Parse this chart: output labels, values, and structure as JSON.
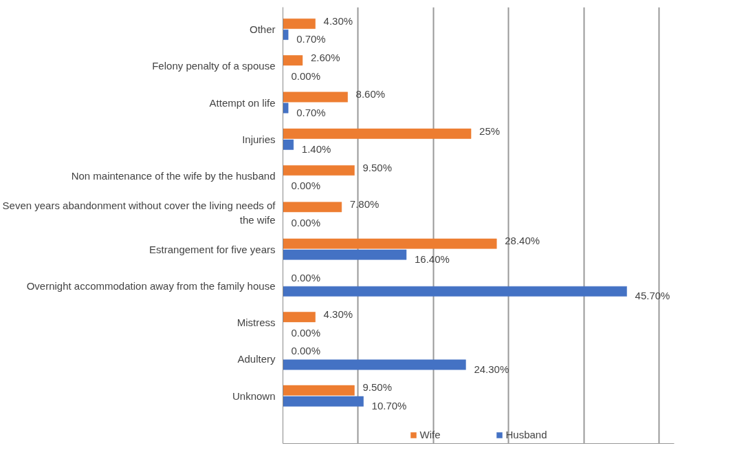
{
  "chart_data": {
    "type": "bar",
    "orientation": "horizontal",
    "categories": [
      "Other",
      "Felony penalty of a spouse",
      "Attempt on life",
      "Injuries",
      "Non maintenance of the wife by the husband",
      "Seven years abandonment without cover the living needs of the wife",
      "Estrangement for five years",
      "Overnight accommodation away from the family house",
      "Mistress",
      "Adultery",
      "Unknown"
    ],
    "series": [
      {
        "name": "Wife",
        "color": "#ed7d31",
        "values": [
          4.3,
          2.6,
          8.6,
          25,
          9.5,
          7.8,
          28.4,
          0,
          4.3,
          0,
          9.5
        ],
        "value_labels": [
          "4.30%",
          "2.60%",
          "8.60%",
          "25%",
          "9.50%",
          "7.80%",
          "28.40%",
          "0.00%",
          "4.30%",
          "0.00%",
          "9.50%"
        ]
      },
      {
        "name": "Husband",
        "color": "#4472c4",
        "values": [
          0.7,
          0,
          0.7,
          1.4,
          0,
          0,
          16.4,
          45.7,
          0,
          24.3,
          10.7
        ],
        "value_labels": [
          "0.70%",
          "0.00%",
          "0.70%",
          "1.40%",
          "0.00%",
          "0.00%",
          "16.40%",
          "45.70%",
          "0.00%",
          "24.30%",
          "10.70%"
        ]
      }
    ],
    "xlim": [
      0,
      52
    ],
    "xticks": [
      {
        "value": 0,
        "label": null
      },
      {
        "value": 10,
        "label": null
      },
      {
        "value": 20,
        "label": null
      },
      {
        "value": 30,
        "label": null
      },
      {
        "value": 40,
        "label": null
      },
      {
        "value": 50,
        "label": null
      }
    ],
    "tick_labels": "y",
    "grid": "x",
    "legend": "bottom"
  }
}
